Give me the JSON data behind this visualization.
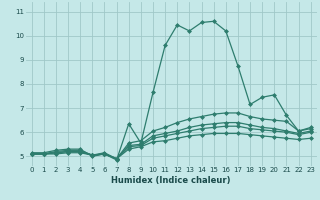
{
  "xlabel": "Humidex (Indice chaleur)",
  "background_color": "#c5e8e8",
  "grid_color": "#a0c8c8",
  "line_color": "#2e7d6e",
  "xlim": [
    -0.5,
    23.5
  ],
  "ylim": [
    4.6,
    11.4
  ],
  "xticks": [
    0,
    1,
    2,
    3,
    4,
    5,
    6,
    7,
    8,
    9,
    10,
    11,
    12,
    13,
    14,
    15,
    16,
    17,
    18,
    19,
    20,
    21,
    22,
    23
  ],
  "yticks": [
    5,
    6,
    7,
    8,
    9,
    10,
    11
  ],
  "lines": [
    {
      "x": [
        0,
        1,
        2,
        3,
        4,
        5,
        6,
        7,
        8,
        9,
        10,
        11,
        12,
        13,
        14,
        15,
        16,
        17,
        18,
        19,
        20,
        21,
        22,
        23
      ],
      "y": [
        5.15,
        5.15,
        5.25,
        5.3,
        5.3,
        5.0,
        5.1,
        4.85,
        6.35,
        5.55,
        7.65,
        9.6,
        10.45,
        10.2,
        10.55,
        10.6,
        10.2,
        8.75,
        7.15,
        7.45,
        7.55,
        6.7,
        6.05,
        6.2
      ]
    },
    {
      "x": [
        0,
        1,
        2,
        3,
        4,
        5,
        6,
        7,
        8,
        9,
        10,
        11,
        12,
        13,
        14,
        15,
        16,
        17,
        18,
        19,
        20,
        21,
        22,
        23
      ],
      "y": [
        5.1,
        5.1,
        5.2,
        5.25,
        5.25,
        5.05,
        5.15,
        4.9,
        5.55,
        5.65,
        6.05,
        6.2,
        6.4,
        6.55,
        6.65,
        6.75,
        6.8,
        6.8,
        6.65,
        6.55,
        6.5,
        6.45,
        6.05,
        6.15
      ]
    },
    {
      "x": [
        0,
        1,
        2,
        3,
        4,
        5,
        6,
        7,
        8,
        9,
        10,
        11,
        12,
        13,
        14,
        15,
        16,
        17,
        18,
        19,
        20,
        21,
        22,
        23
      ],
      "y": [
        5.1,
        5.1,
        5.15,
        5.2,
        5.2,
        5.05,
        5.1,
        4.9,
        5.45,
        5.5,
        5.85,
        5.95,
        6.05,
        6.2,
        6.3,
        6.35,
        6.4,
        6.4,
        6.3,
        6.2,
        6.15,
        6.05,
        5.95,
        6.05
      ]
    },
    {
      "x": [
        0,
        1,
        2,
        3,
        4,
        5,
        6,
        7,
        8,
        9,
        10,
        11,
        12,
        13,
        14,
        15,
        16,
        17,
        18,
        19,
        20,
        21,
        22,
        23
      ],
      "y": [
        5.1,
        5.1,
        5.15,
        5.2,
        5.2,
        5.05,
        5.1,
        4.9,
        5.4,
        5.45,
        5.75,
        5.85,
        5.95,
        6.05,
        6.15,
        6.2,
        6.25,
        6.25,
        6.15,
        6.1,
        6.05,
        6.0,
        5.9,
        6.0
      ]
    },
    {
      "x": [
        0,
        1,
        2,
        3,
        4,
        5,
        6,
        7,
        8,
        9,
        10,
        11,
        12,
        13,
        14,
        15,
        16,
        17,
        18,
        19,
        20,
        21,
        22,
        23
      ],
      "y": [
        5.1,
        5.1,
        5.1,
        5.15,
        5.15,
        5.05,
        5.1,
        4.9,
        5.3,
        5.4,
        5.6,
        5.65,
        5.75,
        5.85,
        5.9,
        5.95,
        5.95,
        5.95,
        5.9,
        5.85,
        5.8,
        5.75,
        5.7,
        5.75
      ]
    }
  ]
}
